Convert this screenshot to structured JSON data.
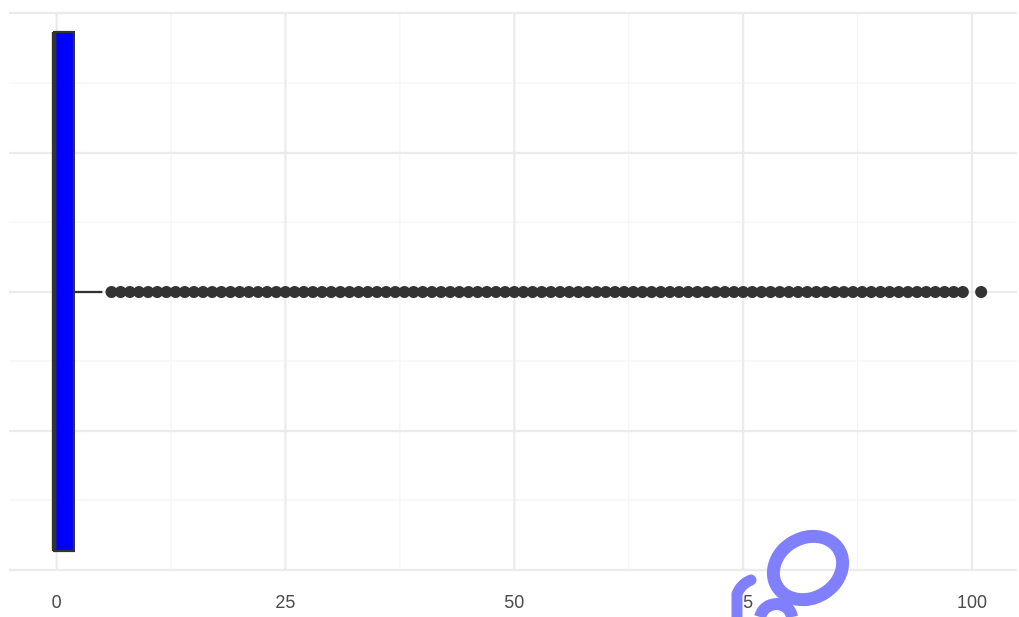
{
  "chart_data": {
    "type": "boxplot",
    "orientation": "horizontal",
    "title": "",
    "xlabel": "",
    "ylabel": "",
    "xlim": [
      -2,
      104
    ],
    "x_ticks": [
      0,
      25,
      50,
      75,
      100
    ],
    "x_tick_labels": [
      "0",
      "25",
      "50",
      "75",
      "100"
    ],
    "grid": true,
    "legend": "none",
    "box": {
      "min": 0,
      "q1": 0,
      "median": 0,
      "q3": 2,
      "whisker_low": 0,
      "whisker_high": 5,
      "fill_color": "#0000ff",
      "line_color": "#333333"
    },
    "outliers": [
      6,
      7,
      8,
      9,
      10,
      11,
      12,
      13,
      14,
      15,
      16,
      17,
      18,
      19,
      20,
      21,
      22,
      23,
      24,
      25,
      26,
      27,
      28,
      29,
      30,
      31,
      32,
      33,
      34,
      35,
      36,
      37,
      38,
      39,
      40,
      41,
      42,
      43,
      44,
      45,
      46,
      47,
      48,
      49,
      50,
      51,
      52,
      53,
      54,
      55,
      56,
      57,
      58,
      59,
      60,
      61,
      62,
      63,
      64,
      65,
      66,
      67,
      68,
      69,
      70,
      71,
      72,
      73,
      74,
      75,
      76,
      77,
      78,
      79,
      80,
      81,
      82,
      83,
      84,
      85,
      86,
      87,
      88,
      89,
      90,
      91,
      92,
      93,
      94,
      95,
      96,
      97,
      98,
      99,
      101
    ]
  },
  "colors": {
    "grid_major": "#ebebeb",
    "grid_minor": "#f4f4f4",
    "tick_text": "#4d4d4d",
    "outlier": "#333333",
    "watermark": "#8080ff"
  },
  "watermark": {
    "icon": "scribble-watermark-icon"
  }
}
